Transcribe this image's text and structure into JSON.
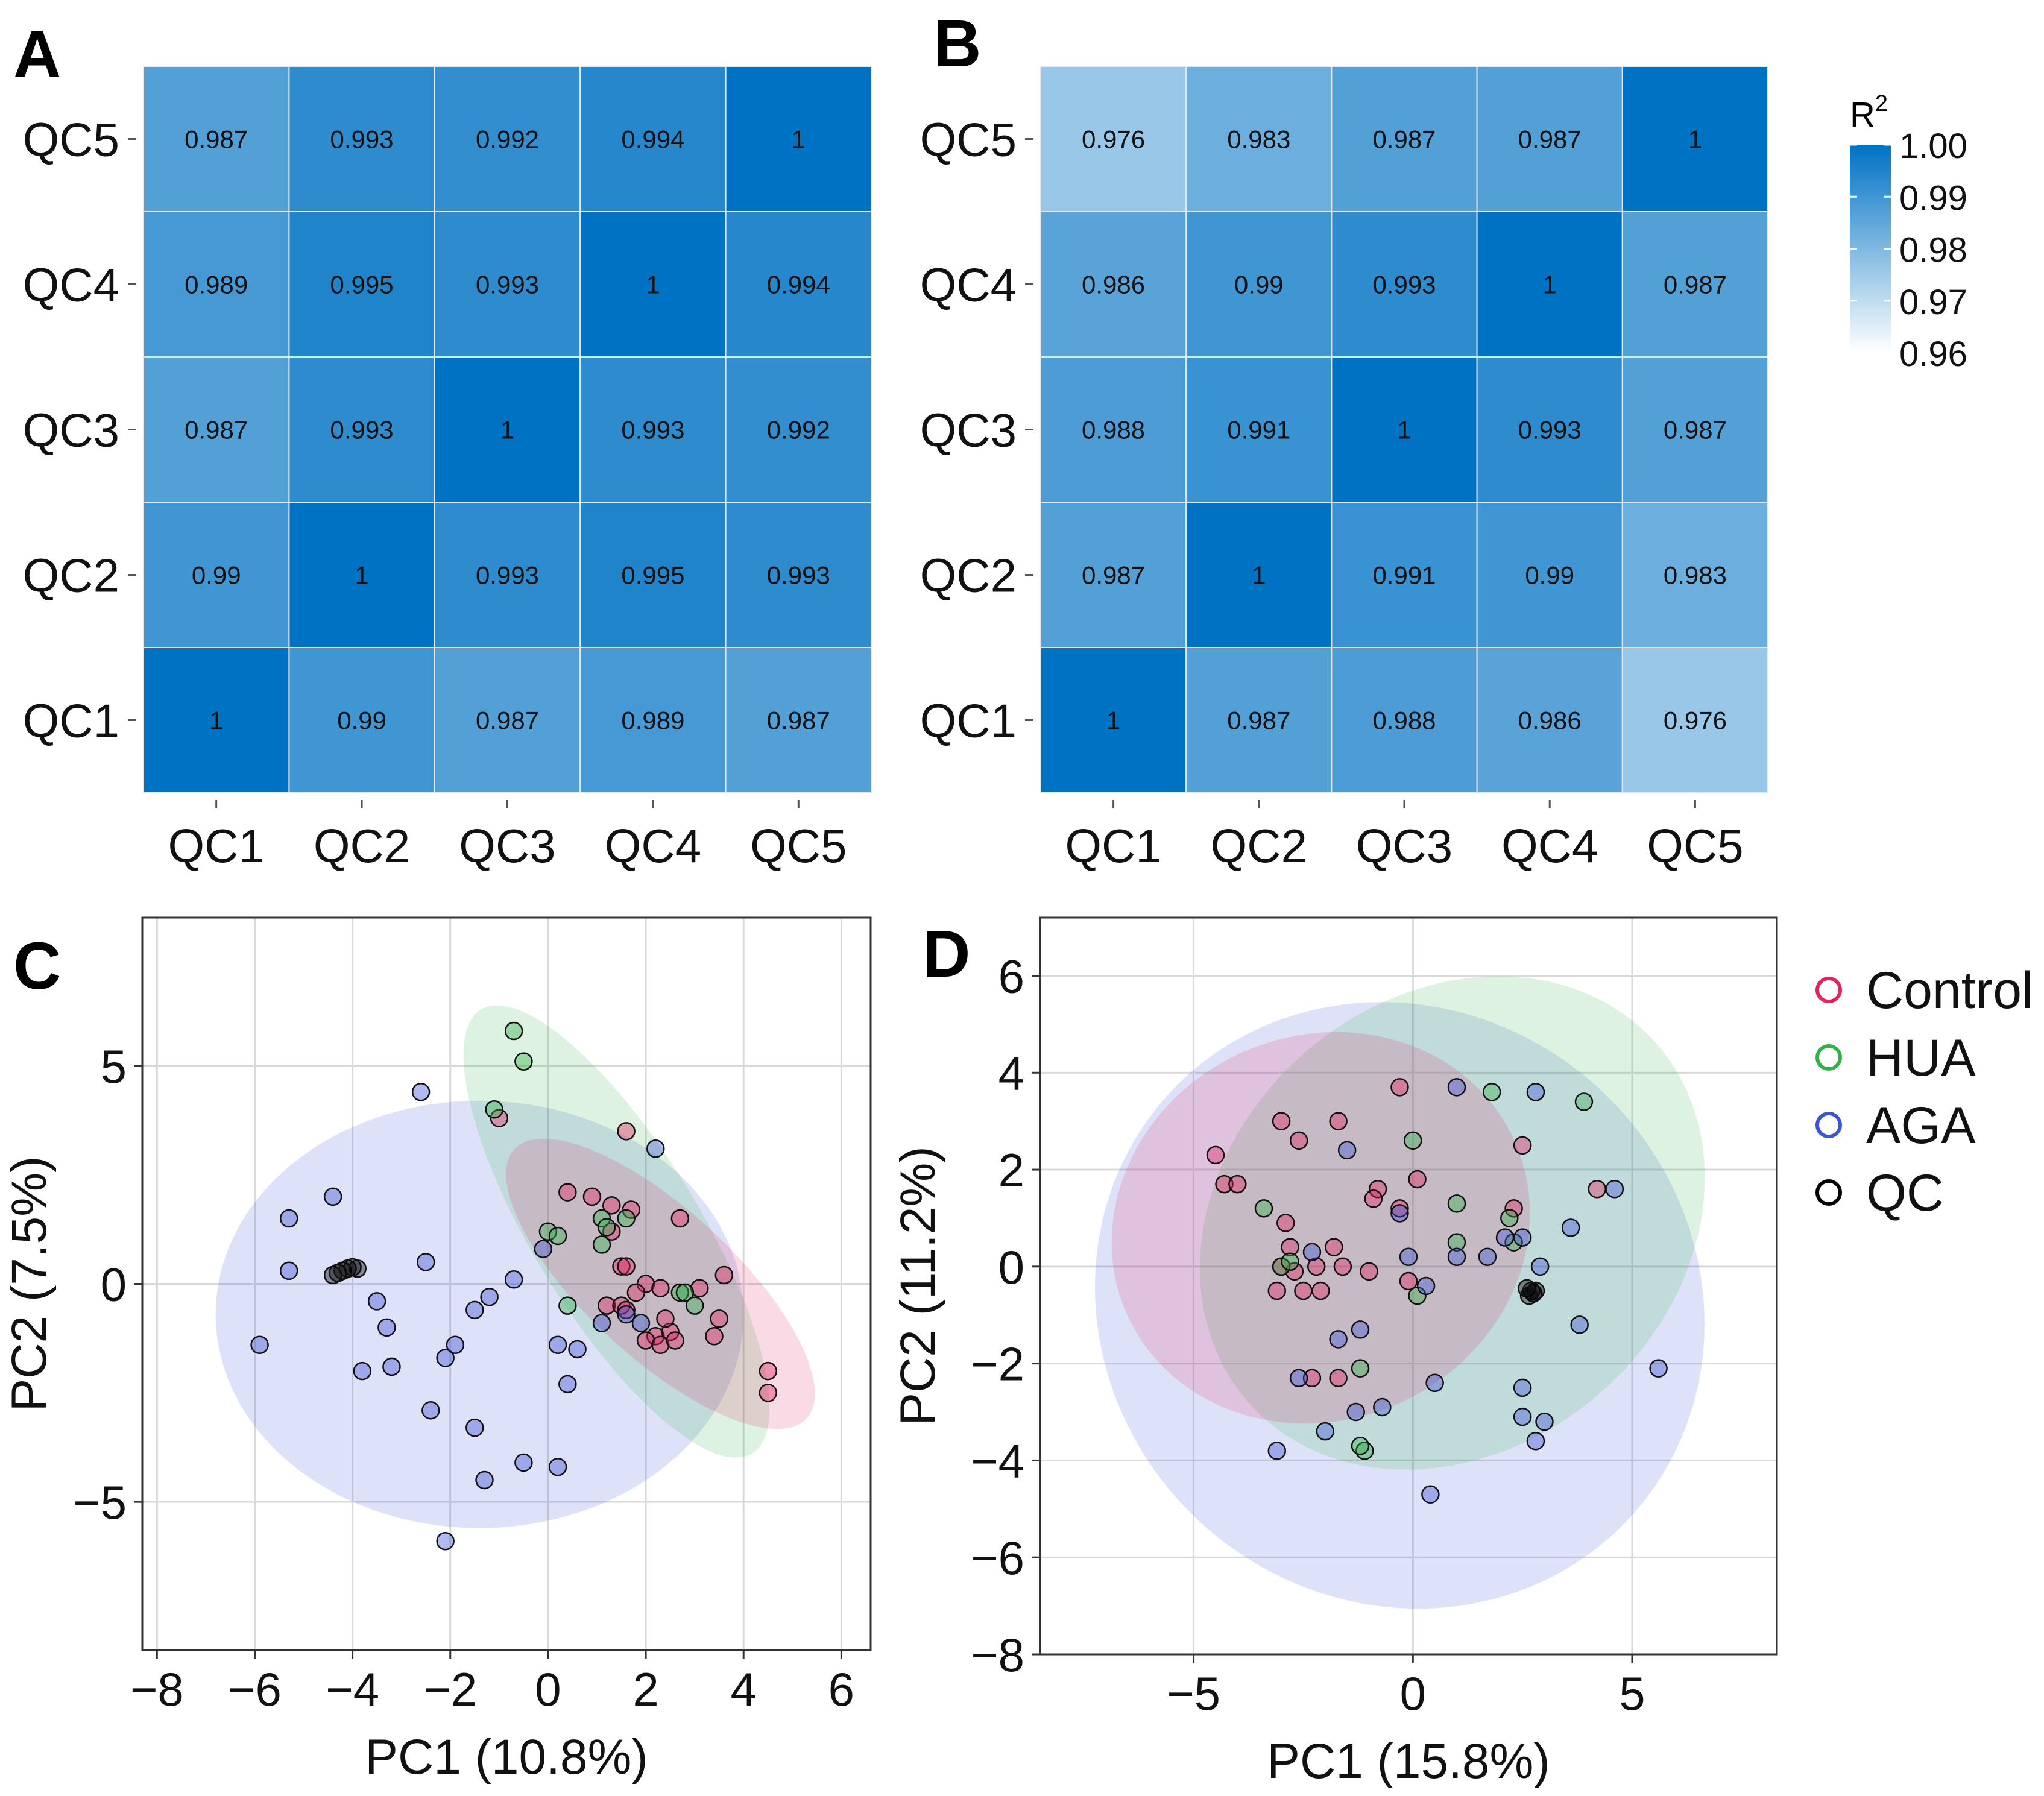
{
  "colors": {
    "heat_high": "#0072C4",
    "heat_low": "#FFFFFF",
    "control": "#E0245E",
    "hua": "#33B04A",
    "aga": "#3B53D6",
    "qc": "#000000"
  },
  "chart_data": [
    {
      "id": "A",
      "panel_label": "A",
      "type": "heatmap",
      "x_labels": [
        "QC1",
        "QC2",
        "QC3",
        "QC4",
        "QC5"
      ],
      "y_labels": [
        "QC1",
        "QC2",
        "QC3",
        "QC4",
        "QC5"
      ],
      "matrix": [
        [
          1,
          0.99,
          0.987,
          0.989,
          0.987
        ],
        [
          0.99,
          1,
          0.993,
          0.995,
          0.993
        ],
        [
          0.987,
          0.993,
          1,
          0.993,
          0.992
        ],
        [
          0.989,
          0.995,
          0.993,
          1,
          0.994
        ],
        [
          0.987,
          0.993,
          0.992,
          0.994,
          1
        ]
      ],
      "value_labels": [
        [
          "1",
          "0.99",
          "0.987",
          "0.989",
          "0.987"
        ],
        [
          "0.99",
          "1",
          "0.993",
          "0.995",
          "0.993"
        ],
        [
          "0.987",
          "0.993",
          "1",
          "0.993",
          "0.992"
        ],
        [
          "0.989",
          "0.995",
          "0.993",
          "1",
          "0.994"
        ],
        [
          "0.987",
          "0.993",
          "0.992",
          "0.994",
          "1"
        ]
      ]
    },
    {
      "id": "B",
      "panel_label": "B",
      "type": "heatmap",
      "x_labels": [
        "QC1",
        "QC2",
        "QC3",
        "QC4",
        "QC5"
      ],
      "y_labels": [
        "QC1",
        "QC2",
        "QC3",
        "QC4",
        "QC5"
      ],
      "matrix": [
        [
          1,
          0.987,
          0.988,
          0.986,
          0.976
        ],
        [
          0.987,
          1,
          0.991,
          0.99,
          0.983
        ],
        [
          0.988,
          0.991,
          1,
          0.993,
          0.987
        ],
        [
          0.986,
          0.99,
          0.993,
          1,
          0.987
        ],
        [
          0.976,
          0.983,
          0.987,
          0.987,
          1
        ]
      ],
      "value_labels": [
        [
          "1",
          "0.987",
          "0.988",
          "0.986",
          "0.976"
        ],
        [
          "0.987",
          "1",
          "0.991",
          "0.99",
          "0.983"
        ],
        [
          "0.988",
          "0.991",
          "1",
          "0.993",
          "0.987"
        ],
        [
          "0.986",
          "0.99",
          "0.993",
          "1",
          "0.987"
        ],
        [
          "0.976",
          "0.983",
          "0.987",
          "0.987",
          "1"
        ]
      ],
      "colorbar": {
        "title": "R",
        "title_sup": "2",
        "range": [
          0.96,
          1.0
        ],
        "ticks": [
          1.0,
          0.99,
          0.98,
          0.97,
          0.96
        ],
        "tick_labels": [
          "1.00",
          "0.99",
          "0.98",
          "0.97",
          "0.96"
        ]
      }
    },
    {
      "id": "C",
      "panel_label": "C",
      "type": "scatter",
      "xlabel": "PC1 (10.8%)",
      "ylabel": "PC2 (7.5%)",
      "xlim": [
        -8.3,
        6.6
      ],
      "ylim": [
        -8.4,
        8.4
      ],
      "xticks": [
        -8,
        -6,
        -4,
        -2,
        0,
        2,
        4,
        6
      ],
      "xtick_labels": [
        "−8",
        "−6",
        "−4",
        "−2",
        "0",
        "2",
        "4",
        "6"
      ],
      "yticks": [
        -5,
        0,
        5
      ],
      "ytick_labels": [
        "−5",
        "0",
        "5"
      ],
      "ellipses": [
        {
          "group": "AGA",
          "cx": -1.4,
          "cy": -0.7,
          "rx": 5.4,
          "ry": 4.9,
          "angle": 0
        },
        {
          "group": "HUA",
          "cx": 1.4,
          "cy": 1.2,
          "rx": 5.8,
          "ry": 1.75,
          "angle": -62
        },
        {
          "group": "Control",
          "cx": 2.3,
          "cy": 0.0,
          "rx": 4.3,
          "ry": 1.6,
          "angle": -47
        }
      ],
      "series": [
        {
          "name": "Control",
          "points": [
            [
              -1.0,
              3.8
            ],
            [
              1.6,
              3.5
            ],
            [
              0.4,
              2.1
            ],
            [
              0.9,
              2.0
            ],
            [
              1.3,
              1.8
            ],
            [
              1.7,
              1.7
            ],
            [
              2.7,
              1.5
            ],
            [
              1.3,
              1.2
            ],
            [
              1.5,
              0.4
            ],
            [
              1.6,
              0.4
            ],
            [
              2.0,
              0.0
            ],
            [
              2.3,
              -0.1
            ],
            [
              1.8,
              -0.2
            ],
            [
              1.2,
              -0.5
            ],
            [
              1.5,
              -0.5
            ],
            [
              1.6,
              -0.6
            ],
            [
              2.2,
              -1.2
            ],
            [
              2.5,
              -1.1
            ],
            [
              2.0,
              -1.3
            ],
            [
              2.3,
              -1.4
            ],
            [
              2.6,
              -1.3
            ],
            [
              3.1,
              -0.1
            ],
            [
              3.6,
              0.2
            ],
            [
              3.5,
              -0.8
            ],
            [
              3.4,
              -1.2
            ],
            [
              4.5,
              -2.0
            ],
            [
              4.5,
              -2.5
            ],
            [
              2.4,
              -0.8
            ]
          ]
        },
        {
          "name": "HUA",
          "points": [
            [
              -0.7,
              5.8
            ],
            [
              -0.5,
              5.1
            ],
            [
              -1.1,
              4.0
            ],
            [
              0.0,
              1.2
            ],
            [
              0.2,
              1.1
            ],
            [
              1.1,
              1.5
            ],
            [
              1.2,
              1.3
            ],
            [
              1.6,
              1.5
            ],
            [
              1.1,
              0.9
            ],
            [
              0.4,
              -0.5
            ],
            [
              2.7,
              -0.2
            ],
            [
              2.8,
              -0.2
            ],
            [
              3.0,
              -0.5
            ]
          ]
        },
        {
          "name": "AGA",
          "points": [
            [
              -2.6,
              4.4
            ],
            [
              2.2,
              3.1
            ],
            [
              -5.3,
              1.5
            ],
            [
              -4.4,
              2.0
            ],
            [
              -5.3,
              0.3
            ],
            [
              -2.5,
              0.5
            ],
            [
              -3.5,
              -0.4
            ],
            [
              -3.3,
              -1.0
            ],
            [
              -1.2,
              -0.3
            ],
            [
              -1.5,
              -0.6
            ],
            [
              -0.7,
              0.1
            ],
            [
              -0.1,
              0.8
            ],
            [
              -5.9,
              -1.4
            ],
            [
              -3.8,
              -2.0
            ],
            [
              -3.2,
              -1.9
            ],
            [
              -2.1,
              -1.7
            ],
            [
              -1.9,
              -1.4
            ],
            [
              0.2,
              -1.4
            ],
            [
              0.6,
              -1.5
            ],
            [
              0.4,
              -2.3
            ],
            [
              -2.4,
              -2.9
            ],
            [
              -1.5,
              -3.3
            ],
            [
              -1.3,
              -4.5
            ],
            [
              -0.5,
              -4.1
            ],
            [
              0.2,
              -4.2
            ],
            [
              -2.1,
              -5.9
            ],
            [
              1.1,
              -0.9
            ],
            [
              1.6,
              -0.7
            ],
            [
              1.9,
              -0.9
            ]
          ]
        },
        {
          "name": "QC",
          "points": [
            [
              -4.4,
              0.2
            ],
            [
              -4.3,
              0.25
            ],
            [
              -4.2,
              0.3
            ],
            [
              -4.1,
              0.35
            ],
            [
              -4.0,
              0.38
            ],
            [
              -3.9,
              0.35
            ]
          ]
        }
      ]
    },
    {
      "id": "D",
      "panel_label": "D",
      "type": "scatter",
      "xlabel": "PC1 (15.8%)",
      "ylabel": "PC2 (11.2%)",
      "xlim": [
        -8.5,
        8.3
      ],
      "ylim": [
        -8.0,
        7.2
      ],
      "xticks": [
        -5,
        0,
        5
      ],
      "xtick_labels": [
        "−5",
        "0",
        "5"
      ],
      "yticks": [
        -8,
        -6,
        -4,
        -2,
        0,
        2,
        4,
        6
      ],
      "ytick_labels": [
        "−8",
        "−6",
        "−4",
        "−2",
        "0",
        "2",
        "4",
        "6"
      ],
      "ellipses": [
        {
          "group": "AGA",
          "cx": -0.3,
          "cy": -0.8,
          "rx": 7.0,
          "ry": 6.2,
          "angle": -15
        },
        {
          "group": "HUA",
          "cx": 0.9,
          "cy": 0.9,
          "rx": 6.0,
          "ry": 4.8,
          "angle": 28
        },
        {
          "group": "Control",
          "cx": -2.1,
          "cy": 0.8,
          "rx": 4.8,
          "ry": 4.0,
          "angle": 12
        }
      ],
      "series": [
        {
          "name": "Control",
          "points": [
            [
              -4.5,
              2.3
            ],
            [
              -4.3,
              1.7
            ],
            [
              -4.0,
              1.7
            ],
            [
              -3.0,
              3.0
            ],
            [
              -2.6,
              2.6
            ],
            [
              -1.7,
              3.0
            ],
            [
              -0.3,
              3.7
            ],
            [
              -0.8,
              1.6
            ],
            [
              0.1,
              1.8
            ],
            [
              -0.9,
              1.4
            ],
            [
              -2.9,
              0.9
            ],
            [
              -2.8,
              0.4
            ],
            [
              -2.2,
              0.0
            ],
            [
              -1.8,
              0.4
            ],
            [
              -1.6,
              0.0
            ],
            [
              -1.0,
              -0.1
            ],
            [
              -0.3,
              1.2
            ],
            [
              -2.7,
              -0.1
            ],
            [
              -2.5,
              -0.5
            ],
            [
              -3.1,
              -0.5
            ],
            [
              -0.1,
              -0.3
            ],
            [
              -1.7,
              -2.3
            ],
            [
              -2.3,
              -2.3
            ],
            [
              2.5,
              2.5
            ],
            [
              2.3,
              1.2
            ],
            [
              4.2,
              1.6
            ],
            [
              -3.0,
              0.0
            ],
            [
              -2.1,
              -0.5
            ]
          ]
        },
        {
          "name": "HUA",
          "points": [
            [
              -3.4,
              1.2
            ],
            [
              -3.0,
              0.0
            ],
            [
              -2.8,
              0.1
            ],
            [
              -1.2,
              -2.1
            ],
            [
              -1.1,
              -3.8
            ],
            [
              0.0,
              2.6
            ],
            [
              0.1,
              -0.6
            ],
            [
              1.0,
              1.3
            ],
            [
              1.0,
              0.5
            ],
            [
              1.8,
              3.6
            ],
            [
              2.2,
              1.0
            ],
            [
              2.3,
              0.5
            ],
            [
              3.9,
              3.4
            ],
            [
              -1.2,
              -3.7
            ]
          ]
        },
        {
          "name": "AGA",
          "points": [
            [
              -3.1,
              -3.8
            ],
            [
              -2.6,
              -2.3
            ],
            [
              -2.3,
              0.3
            ],
            [
              -1.5,
              2.4
            ],
            [
              -1.7,
              -1.5
            ],
            [
              -1.2,
              -1.3
            ],
            [
              -1.3,
              -3.0
            ],
            [
              -0.7,
              -2.9
            ],
            [
              -0.3,
              1.1
            ],
            [
              -0.1,
              0.2
            ],
            [
              0.3,
              -0.4
            ],
            [
              0.5,
              -2.4
            ],
            [
              0.4,
              -4.7
            ],
            [
              1.0,
              3.7
            ],
            [
              1.0,
              0.2
            ],
            [
              2.1,
              0.6
            ],
            [
              2.5,
              0.6
            ],
            [
              2.8,
              3.6
            ],
            [
              2.9,
              0.0
            ],
            [
              3.6,
              0.8
            ],
            [
              3.8,
              -1.2
            ],
            [
              4.6,
              1.6
            ],
            [
              2.5,
              -2.5
            ],
            [
              2.5,
              -3.1
            ],
            [
              2.8,
              -3.6
            ],
            [
              3.0,
              -3.2
            ],
            [
              5.6,
              -2.1
            ],
            [
              -2.0,
              -3.4
            ],
            [
              1.7,
              0.2
            ]
          ]
        },
        {
          "name": "QC",
          "points": [
            [
              2.6,
              -0.45
            ],
            [
              2.7,
              -0.5
            ],
            [
              2.75,
              -0.55
            ],
            [
              2.8,
              -0.5
            ],
            [
              2.65,
              -0.6
            ]
          ]
        }
      ],
      "legend": {
        "position": "right",
        "items": [
          {
            "name": "Control",
            "label": "Control"
          },
          {
            "name": "HUA",
            "label": "HUA"
          },
          {
            "name": "AGA",
            "label": "AGA"
          },
          {
            "name": "QC",
            "label": "QC"
          }
        ]
      }
    }
  ]
}
